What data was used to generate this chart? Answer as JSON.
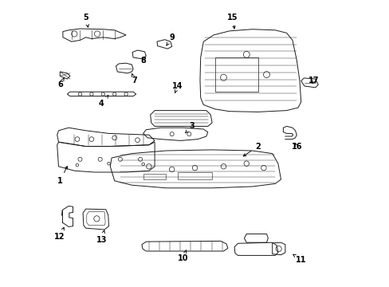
{
  "background_color": "#ffffff",
  "line_color": "#1a1a1a",
  "text_color": "#000000",
  "fig_width": 4.89,
  "fig_height": 3.6,
  "dpi": 100,
  "lw": 0.7,
  "labels": [
    [
      1,
      0.03,
      0.37,
      0.06,
      0.43
    ],
    [
      2,
      0.72,
      0.49,
      0.66,
      0.45
    ],
    [
      3,
      0.49,
      0.56,
      0.46,
      0.53
    ],
    [
      4,
      0.175,
      0.64,
      0.2,
      0.67
    ],
    [
      5,
      0.12,
      0.94,
      0.13,
      0.895
    ],
    [
      6,
      0.03,
      0.705,
      0.045,
      0.73
    ],
    [
      7,
      0.29,
      0.72,
      0.28,
      0.745
    ],
    [
      8,
      0.32,
      0.79,
      0.315,
      0.8
    ],
    [
      9,
      0.42,
      0.87,
      0.4,
      0.84
    ],
    [
      10,
      0.46,
      0.1,
      0.47,
      0.13
    ],
    [
      11,
      0.87,
      0.095,
      0.84,
      0.115
    ],
    [
      12,
      0.028,
      0.175,
      0.045,
      0.21
    ],
    [
      13,
      0.175,
      0.165,
      0.185,
      0.2
    ],
    [
      14,
      0.44,
      0.7,
      0.43,
      0.675
    ],
    [
      15,
      0.63,
      0.94,
      0.64,
      0.89
    ],
    [
      16,
      0.855,
      0.49,
      0.845,
      0.51
    ],
    [
      17,
      0.915,
      0.72,
      0.905,
      0.7
    ]
  ]
}
